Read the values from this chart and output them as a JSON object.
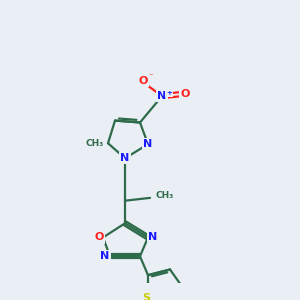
{
  "bg_color": "#eaeff5",
  "bond_color": "#2d6b4a",
  "bond_width": 1.6,
  "atom_colors": {
    "N": "#1a1aff",
    "O": "#ff2020",
    "S": "#cccc00",
    "C": "#2d6b4a"
  },
  "font_size": 8.0
}
